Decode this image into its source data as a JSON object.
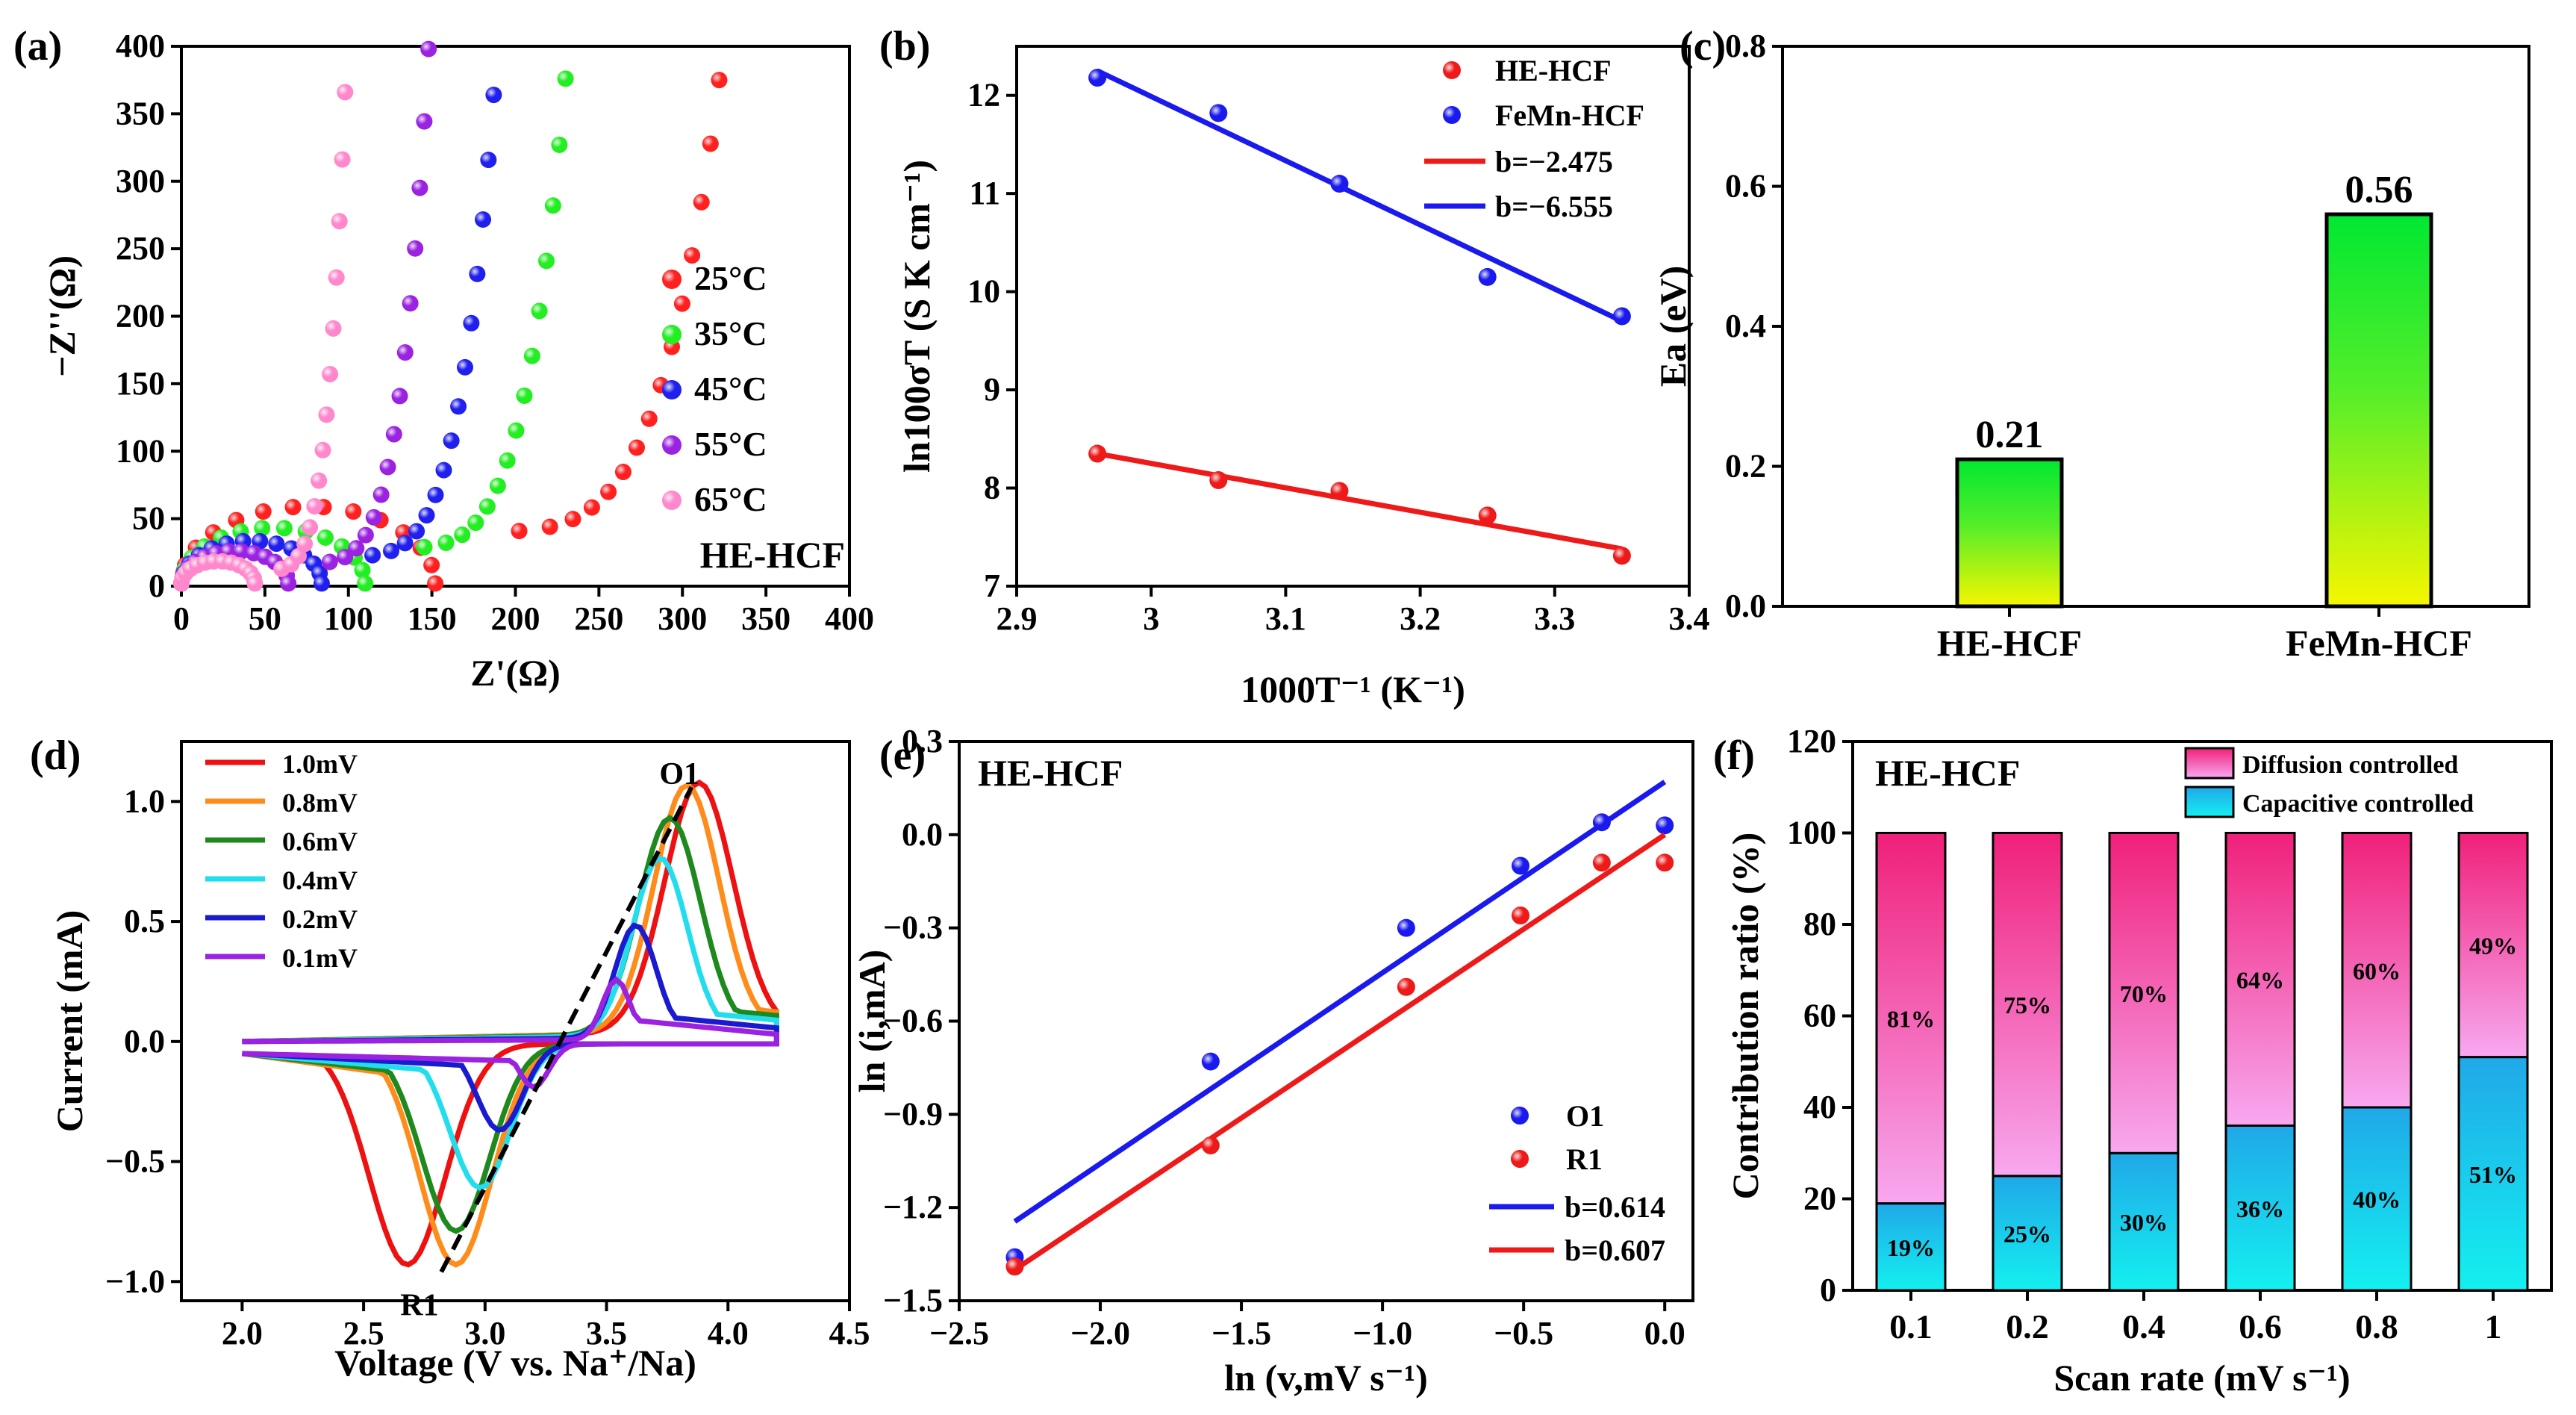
{
  "chart_data": [
    {
      "panel": "(a)",
      "type": "scatter",
      "xlabel": "Z'(Ω)",
      "ylabel": "−Z''(Ω)",
      "xlim": [
        0,
        400
      ],
      "ylim": [
        0,
        400
      ],
      "xticks": [
        0,
        50,
        100,
        150,
        200,
        250,
        300,
        350,
        400
      ],
      "yticks": [
        0,
        50,
        100,
        150,
        200,
        250,
        300,
        350,
        400
      ],
      "label": "HE-HCF",
      "series": [
        {
          "name": "25°C",
          "color": "#ff2020",
          "semi": {
            "x0": 0,
            "r": 76
          },
          "tail": {
            "x0": 152,
            "x1": 322,
            "y0": 40,
            "y1": 375
          }
        },
        {
          "name": "35°C",
          "color": "#22ee22",
          "semi": {
            "x0": 0,
            "r": 55
          },
          "tail": {
            "x0": 110,
            "x1": 230,
            "y0": 28,
            "y1": 376
          }
        },
        {
          "name": "45°C",
          "color": "#2020ee",
          "semi": {
            "x0": 0,
            "r": 42
          },
          "tail": {
            "x0": 84,
            "x1": 187,
            "y0": 22,
            "y1": 364
          }
        },
        {
          "name": "55°C",
          "color": "#9a22e0",
          "semi": {
            "x0": 0,
            "r": 32
          },
          "tail": {
            "x0": 64,
            "x1": 148,
            "y0": 17,
            "y1": 398
          }
        },
        {
          "name": "65°C",
          "color": "#ff88cc",
          "semi": {
            "x0": 0,
            "r": 22
          },
          "tail": {
            "x0": 44,
            "x1": 98,
            "y0": 12,
            "y1": 366
          }
        }
      ]
    },
    {
      "panel": "(b)",
      "type": "scatter",
      "xlabel": "1000T⁻¹ (K⁻¹)",
      "ylabel": "ln100σT (S K cm⁻¹)",
      "xlim": [
        2.9,
        3.4
      ],
      "ylim": [
        7,
        12.5
      ],
      "xticks": [
        2.9,
        3.0,
        3.1,
        3.2,
        3.3,
        3.4
      ],
      "yticks": [
        7,
        8,
        9,
        10,
        11,
        12
      ],
      "series": [
        {
          "name": "HE-HCF",
          "color": "#ee1a1a",
          "x": [
            2.96,
            3.05,
            3.14,
            3.25,
            3.35
          ],
          "y": [
            8.35,
            8.08,
            7.97,
            7.72,
            7.31
          ],
          "fit": {
            "label": "b=−2.475",
            "x": [
              2.96,
              3.35
            ],
            "y": [
              8.35,
              7.38
            ]
          }
        },
        {
          "name": "FeMn-HCF",
          "color": "#1a1aee",
          "x": [
            2.96,
            3.05,
            3.14,
            3.25,
            3.35
          ],
          "y": [
            12.18,
            11.82,
            11.1,
            10.15,
            9.75
          ],
          "fit": {
            "label": "b=−6.555",
            "x": [
              2.96,
              3.35
            ],
            "y": [
              12.25,
              9.7
            ]
          }
        }
      ]
    },
    {
      "panel": "(c)",
      "type": "bar",
      "categories": [
        "HE-HCF",
        "FeMn-HCF"
      ],
      "values": [
        0.21,
        0.56
      ],
      "value_labels": [
        "0.21",
        "0.56"
      ],
      "ylabel": "Ea (eV)",
      "ylim": [
        0,
        0.8
      ],
      "yticks": [
        "0.0",
        "0.2",
        "0.4",
        "0.6",
        "0.8"
      ]
    },
    {
      "panel": "(d)",
      "type": "line",
      "xlabel": "Voltage (V vs. Na⁺/Na)",
      "ylabel": "Current (mA)",
      "xlim": [
        1.75,
        4.5
      ],
      "ylim": [
        -1.08,
        1.25
      ],
      "xticks": [
        "2.0",
        "2.5",
        "3.0",
        "3.5",
        "4.0",
        "4.5"
      ],
      "yticks": [
        "−1.0",
        "−0.5",
        "0.0",
        "0.5",
        "1.0"
      ],
      "annotations": [
        "O1",
        "R1"
      ],
      "series": [
        {
          "name": "1.0mV",
          "color": "#ee1111",
          "ox": 3.88,
          "oy": 1.04,
          "rx": 2.68,
          "ry": -0.92,
          "w": 0.2
        },
        {
          "name": "0.8mV",
          "color": "#ff8c1a",
          "ox": 3.83,
          "oy": 1.03,
          "rx": 2.88,
          "ry": -0.92,
          "w": 0.19
        },
        {
          "name": "0.6mV",
          "color": "#1e8a1e",
          "ox": 3.76,
          "oy": 0.9,
          "rx": 2.88,
          "ry": -0.78,
          "w": 0.18
        },
        {
          "name": "0.4mV",
          "color": "#22ddee",
          "ox": 3.72,
          "oy": 0.74,
          "rx": 2.98,
          "ry": -0.6,
          "w": 0.16
        },
        {
          "name": "0.2mV",
          "color": "#1a1ad0",
          "ox": 3.62,
          "oy": 0.47,
          "rx": 3.06,
          "ry": -0.36,
          "w": 0.12
        },
        {
          "name": "0.1mV",
          "color": "#9a22e0",
          "ox": 3.54,
          "oy": 0.25,
          "rx": 3.2,
          "ry": -0.18,
          "w": 0.08
        }
      ]
    },
    {
      "panel": "(e)",
      "type": "scatter",
      "xlabel": "ln (v,mV s⁻¹)",
      "ylabel": "ln (i,mA)",
      "label": "HE-HCF",
      "xlim": [
        -2.5,
        0.1
      ],
      "ylim": [
        -1.5,
        0.3
      ],
      "xticks": [
        "−2.5",
        "−2.0",
        "−1.5",
        "−1.0",
        "−0.5",
        "0.0"
      ],
      "yticks": [
        "−1.5",
        "−1.2",
        "−0.9",
        "−0.6",
        "−0.3",
        "0.0",
        "0.3"
      ],
      "series": [
        {
          "name": "O1",
          "color": "#1a1aee",
          "x": [
            -2.303,
            -1.609,
            -0.916,
            -0.511,
            -0.223,
            0
          ],
          "y": [
            -1.36,
            -0.73,
            -0.3,
            -0.1,
            0.04,
            0.03
          ],
          "fit": {
            "label": "b=0.614",
            "x": [
              -2.303,
              0
            ],
            "y": [
              -1.245,
              0.17
            ]
          }
        },
        {
          "name": "R1",
          "color": "#ee1a1a",
          "x": [
            -2.303,
            -1.609,
            -0.916,
            -0.511,
            -0.223,
            0
          ],
          "y": [
            -1.39,
            -1.0,
            -0.49,
            -0.26,
            -0.09,
            -0.09
          ],
          "fit": {
            "label": "b=0.607",
            "x": [
              -2.303,
              0
            ],
            "y": [
              -1.4,
              0
            ]
          }
        }
      ]
    },
    {
      "panel": "(f)",
      "type": "bar",
      "stacked": true,
      "label": "HE-HCF",
      "categories": [
        "0.1",
        "0.2",
        "0.4",
        "0.6",
        "0.8",
        "1"
      ],
      "xlabel": "Scan rate (mV s⁻¹)",
      "ylabel": "Contribution ratio (%)",
      "ylim": [
        0,
        120
      ],
      "yticks": [
        0,
        20,
        40,
        60,
        80,
        100,
        120
      ],
      "series": [
        {
          "name": "Capacitive controlled",
          "values": [
            19,
            25,
            30,
            36,
            40,
            51
          ],
          "labels": [
            "19%",
            "25%",
            "30%",
            "36%",
            "40%",
            "51%"
          ]
        },
        {
          "name": "Diffusion controlled",
          "values": [
            81,
            75,
            70,
            64,
            60,
            49
          ],
          "labels": [
            "81%",
            "75%",
            "70%",
            "64%",
            "60%",
            "49%"
          ]
        }
      ]
    }
  ]
}
